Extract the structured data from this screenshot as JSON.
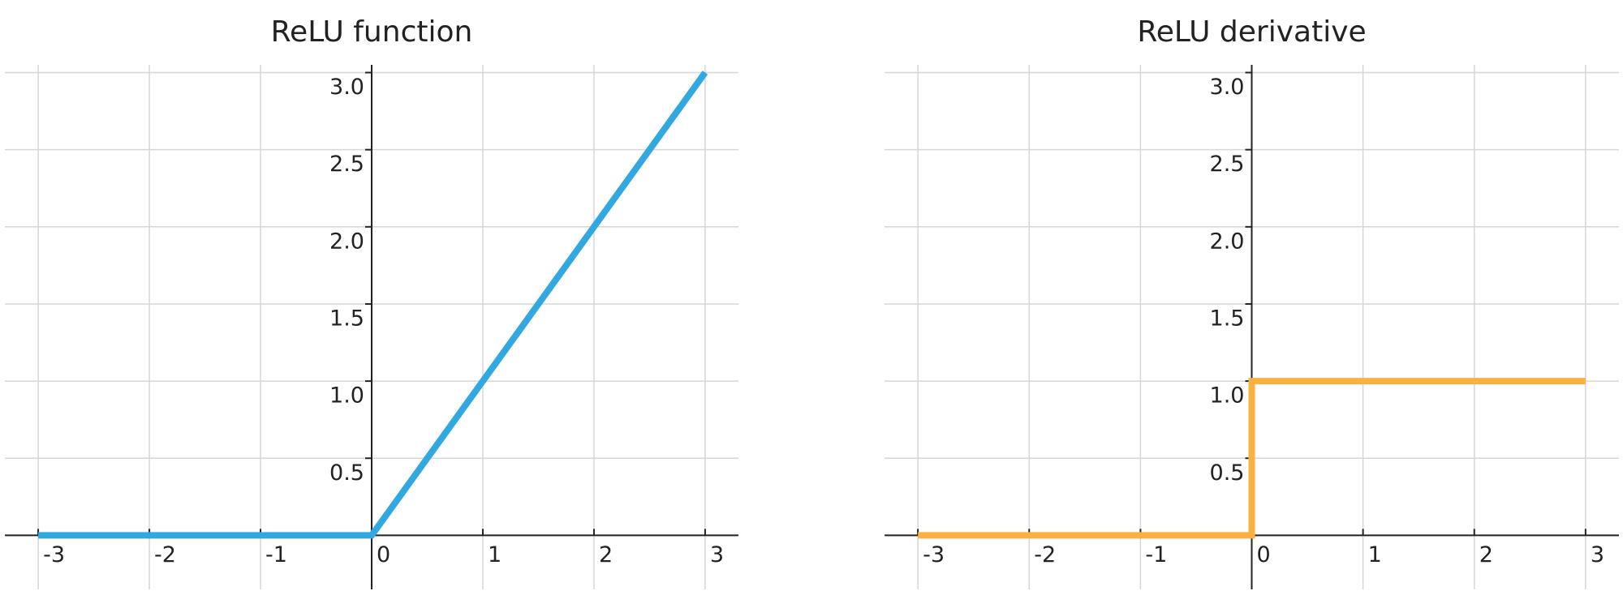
{
  "chart_data": [
    {
      "type": "line",
      "title": "ReLU function",
      "x": [
        -3,
        0,
        3
      ],
      "values": [
        0,
        0,
        3
      ],
      "color": "#31a8df",
      "xlim": [
        -3.3,
        3.3
      ],
      "ylim": [
        -0.35,
        3.05
      ],
      "xticks": [
        -3,
        -2,
        -1,
        0,
        1,
        2,
        3
      ],
      "yticks": [
        0.5,
        {
          "value": 1,
          "label": "1.0"
        },
        1.5,
        {
          "value": 2,
          "label": "2.0"
        },
        2.5,
        {
          "value": 3,
          "label": "3.0"
        }
      ],
      "grid": true
    },
    {
      "type": "line",
      "title": "ReLU derivative",
      "x": [
        -3,
        0,
        0,
        3
      ],
      "values": [
        0,
        0,
        1,
        1
      ],
      "color": "#f9b142",
      "xlim": [
        -3.3,
        3.3
      ],
      "ylim": [
        -0.35,
        3.05
      ],
      "xticks": [
        -3,
        -2,
        -1,
        0,
        1,
        2,
        3
      ],
      "yticks": [
        0.5,
        {
          "value": 1,
          "label": "1.0"
        },
        1.5,
        {
          "value": 2,
          "label": "2.0"
        },
        2.5,
        {
          "value": 3,
          "label": "3.0"
        }
      ],
      "grid": true
    }
  ]
}
